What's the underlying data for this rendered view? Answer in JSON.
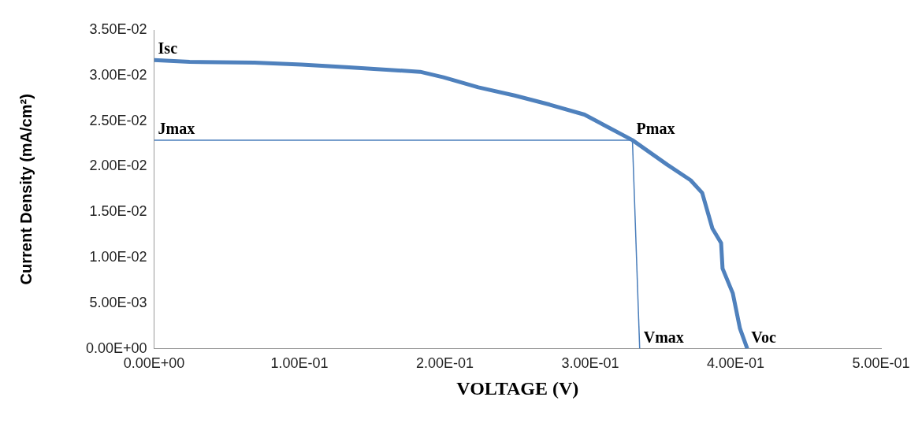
{
  "chart_data": {
    "type": "line",
    "xlabel": "VOLTAGE (V)",
    "ylabel": "Current Density (mA/cm²)",
    "series": [
      {
        "color": "#4f81bd",
        "x": [
          0,
          0.0244,
          0.069,
          0.1015,
          0.134,
          0.183,
          0.199,
          0.223,
          0.248,
          0.272,
          0.296,
          0.3125,
          0.329,
          0.353,
          0.369,
          0.377,
          0.384,
          0.39,
          0.391,
          0.398,
          0.403,
          0.408
        ],
        "values": [
          0.0317,
          0.0315,
          0.0314,
          0.0312,
          0.0309,
          0.0304,
          0.0298,
          0.0287,
          0.0278,
          0.0268,
          0.0257,
          0.0243,
          0.0229,
          0.0202,
          0.0185,
          0.0171,
          0.0132,
          0.0116,
          0.0088,
          0.0061,
          0.0022,
          0
        ]
      },
      {
        "color": "#4a7ebb",
        "x": [
          0,
          0.329
        ],
        "values": [
          0.0229,
          0.0229
        ]
      },
      {
        "color": "#4a7ebb",
        "x": [
          0.329,
          0.334
        ],
        "values": [
          0.0229,
          0
        ]
      }
    ],
    "xlim": [
      0,
      0.5
    ],
    "ylim": [
      0,
      0.035
    ],
    "xticks": [
      {
        "value": 0,
        "label": "0.00E+00"
      },
      {
        "value": 0.1,
        "label": "1.00E-01"
      },
      {
        "value": 0.2,
        "label": "2.00E-01"
      },
      {
        "value": 0.3,
        "label": "3.00E-01"
      },
      {
        "value": 0.4,
        "label": "4.00E-01"
      },
      {
        "value": 0.5,
        "label": "5.00E-01"
      }
    ],
    "yticks": [
      {
        "value": 0,
        "label": "0.00E+00"
      },
      {
        "value": 0.005,
        "label": "5.00E-03"
      },
      {
        "value": 0.01,
        "label": "1.00E-02"
      },
      {
        "value": 0.015,
        "label": "1.50E-02"
      },
      {
        "value": 0.02,
        "label": "2.00E-02"
      },
      {
        "value": 0.025,
        "label": "2.50E-02"
      },
      {
        "value": 0.03,
        "label": "3.00E-02"
      },
      {
        "value": 0.035,
        "label": "3.50E-02"
      }
    ],
    "annotations": [
      {
        "text": "Isc",
        "x": 0,
        "y": 0.0317
      },
      {
        "text": "Jmax",
        "x": 0,
        "y": 0.0229
      },
      {
        "text": "Pmax",
        "x": 0.329,
        "y": 0.0229
      },
      {
        "text": "Vmax",
        "x": 0.334,
        "y": 0
      },
      {
        "text": "Voc",
        "x": 0.408,
        "y": 0
      }
    ],
    "grid": false,
    "legend": false,
    "marker": "none"
  }
}
